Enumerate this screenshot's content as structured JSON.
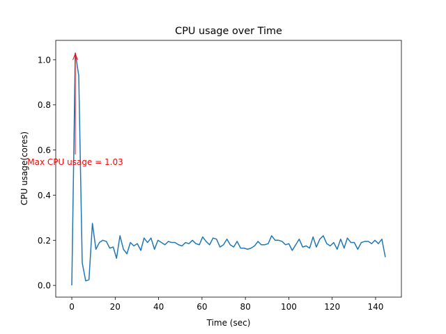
{
  "chart_data": {
    "type": "line",
    "title": "CPU usage over Time",
    "xlabel": "Time (sec)",
    "ylabel": "CPU usage(cores)",
    "annotation": "Max CPU usage = 1.03",
    "annotation_color": "#ff0000",
    "x": [
      0,
      1.6,
      3.2,
      4.8,
      6.4,
      7.9,
      9.5,
      11.1,
      12.7,
      14.3,
      15.9,
      17.5,
      19.1,
      20.6,
      22.2,
      23.8,
      25.4,
      27.0,
      28.6,
      30.2,
      31.8,
      33.3,
      34.9,
      36.5,
      38.1,
      39.7,
      41.3,
      42.9,
      44.5,
      46.1,
      47.6,
      49.2,
      50.8,
      52.4,
      54.0,
      55.6,
      57.2,
      58.8,
      60.3,
      61.9,
      63.5,
      65.1,
      66.7,
      68.3,
      69.9,
      71.5,
      73.0,
      74.6,
      76.2,
      77.8,
      79.4,
      81.0,
      82.6,
      84.2,
      85.8,
      87.3,
      88.9,
      90.5,
      92.1,
      93.7,
      95.3,
      96.9,
      98.5,
      100.0,
      101.6,
      103.2,
      104.8,
      106.4,
      108.0,
      109.6,
      111.2,
      112.7,
      114.3,
      115.9,
      117.5,
      119.1,
      120.7,
      122.3,
      123.9,
      125.5,
      127.0,
      128.6,
      130.2,
      131.8,
      133.4,
      135.0,
      136.6,
      138.2,
      139.7,
      141.3,
      142.9,
      144.5
    ],
    "values": [
      0,
      1.03,
      0.93,
      0.1,
      0.02,
      0.025,
      0.275,
      0.16,
      0.19,
      0.2,
      0.195,
      0.165,
      0.17,
      0.12,
      0.22,
      0.16,
      0.14,
      0.19,
      0.175,
      0.185,
      0.155,
      0.21,
      0.19,
      0.21,
      0.16,
      0.2,
      0.19,
      0.18,
      0.195,
      0.19,
      0.19,
      0.18,
      0.175,
      0.19,
      0.185,
      0.2,
      0.185,
      0.18,
      0.215,
      0.195,
      0.18,
      0.21,
      0.205,
      0.17,
      0.18,
      0.205,
      0.18,
      0.17,
      0.195,
      0.165,
      0.165,
      0.16,
      0.165,
      0.175,
      0.195,
      0.18,
      0.18,
      0.185,
      0.22,
      0.2,
      0.2,
      0.195,
      0.18,
      0.185,
      0.155,
      0.18,
      0.205,
      0.17,
      0.175,
      0.165,
      0.215,
      0.17,
      0.205,
      0.22,
      0.185,
      0.175,
      0.19,
      0.16,
      0.205,
      0.165,
      0.21,
      0.19,
      0.19,
      0.16,
      0.19,
      0.195,
      0.195,
      0.185,
      0.2,
      0.185,
      0.205,
      0.125
    ],
    "color": "#1f77b4",
    "xlim": [
      -7.4,
      151.9
    ],
    "ylim": [
      -0.052,
      1.086
    ],
    "xticks": [
      0,
      20,
      40,
      60,
      80,
      100,
      120,
      140
    ],
    "yticks": [
      {
        "value": 0,
        "label": "0.0"
      },
      {
        "value": 0.2,
        "label": "0.2"
      },
      {
        "value": 0.4,
        "label": "0.4"
      },
      {
        "value": 0.6,
        "label": "0.6"
      },
      {
        "value": 0.8,
        "label": "0.8"
      },
      {
        "value": 1.0,
        "label": "1.0"
      }
    ]
  }
}
